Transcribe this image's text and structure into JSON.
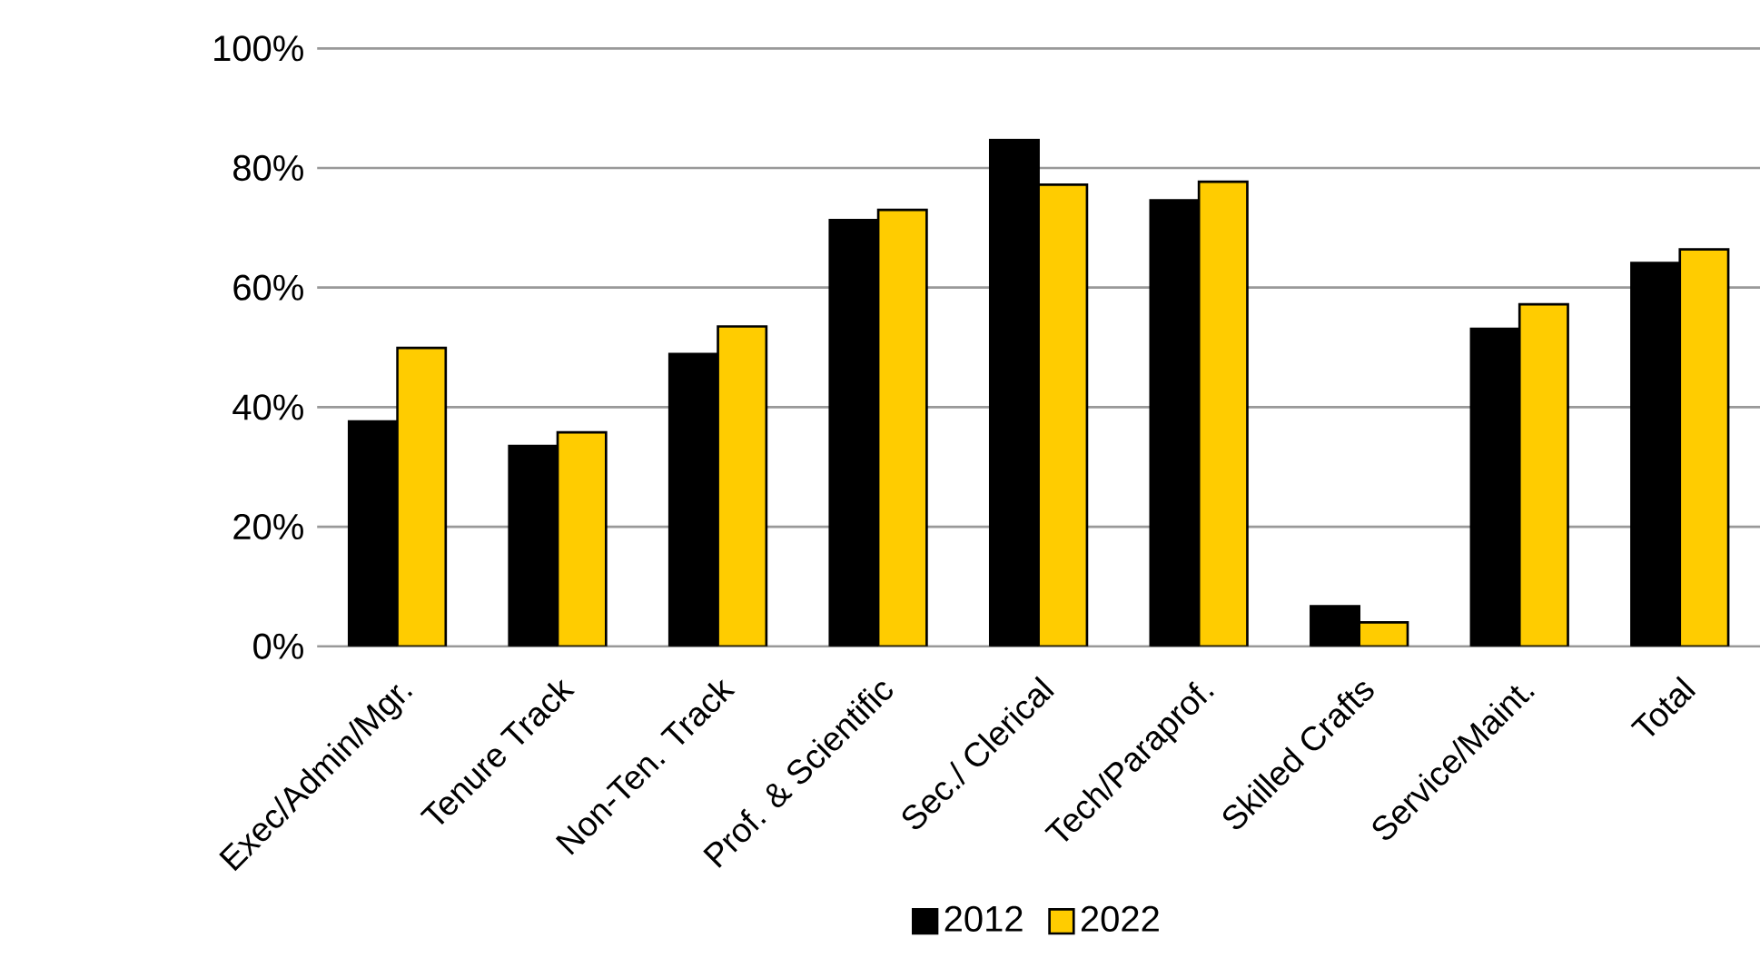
{
  "chart_data": {
    "type": "bar",
    "categories": [
      "Exec/Admin/Mgr.",
      "Tenure Track",
      "Non-Ten. Track",
      "Prof. & Scientific",
      "Sec./ Clerical",
      "Tech/Paraprof.",
      "Skilled Crafts",
      "Service/Maint.",
      "Total"
    ],
    "series": [
      {
        "name": "2012",
        "color": "#000000",
        "values": [
          37.6,
          33.5,
          48.9,
          71.3,
          84.7,
          74.6,
          6.7,
          53.1,
          64.1
        ]
      },
      {
        "name": "2022",
        "color": "#ffcc00",
        "values": [
          49.9,
          35.8,
          53.5,
          73.0,
          77.2,
          77.7,
          4.0,
          57.2,
          66.4
        ]
      }
    ],
    "ylim": [
      0,
      100
    ],
    "yticks": [
      {
        "value": 0,
        "label": "0%"
      },
      {
        "value": 20,
        "label": "20%"
      },
      {
        "value": 40,
        "label": "40%"
      },
      {
        "value": 60,
        "label": "60%"
      },
      {
        "value": 80,
        "label": "80%"
      },
      {
        "value": 100,
        "label": "100%"
      }
    ],
    "grid": "y",
    "legend": "bottom"
  }
}
